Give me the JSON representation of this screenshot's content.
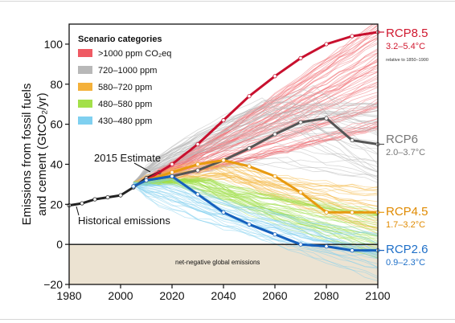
{
  "chart_data": {
    "type": "line",
    "xlabel": "",
    "ylabel_line1": "Emissions from fossil fuels",
    "ylabel_line2": "and cement (GtCO₂/yr)",
    "xlim": [
      1980,
      2100
    ],
    "ylim": [
      -20,
      110
    ],
    "xticks": [
      "1980",
      "2000",
      "2020",
      "2040",
      "2060",
      "2080",
      "2100"
    ],
    "yticks": [
      "−20",
      "0",
      "20",
      "40",
      "60",
      "80",
      "100"
    ],
    "legend": {
      "title": "Scenario categories",
      "placement": "top-left",
      "entries": [
        {
          "label": ">1000 ppm CO₂eq",
          "color": "#ef5a63"
        },
        {
          "label": "720–1000 ppm",
          "color": "#b8b8b8"
        },
        {
          "label": "580–720 ppm",
          "color": "#f4b13b"
        },
        {
          "label": "480–580 ppm",
          "color": "#a3e04a"
        },
        {
          "label": "430–480 ppm",
          "color": "#7fd0f0"
        }
      ]
    },
    "annotations": {
      "estimate_2015": "2015 Estimate",
      "historical": "Historical emissions",
      "net_negative": "net-negative global emissions",
      "relative_note": "relative to 1850–1900"
    },
    "series": [
      {
        "name": "Historical emissions",
        "color": "#222222",
        "x": [
          1980,
          1985,
          1990,
          1995,
          2000,
          2005,
          2010,
          2015
        ],
        "y": [
          19.5,
          20.5,
          22.5,
          23.5,
          24.5,
          28.5,
          33,
          36
        ]
      },
      {
        "name": "RCP8.5",
        "range": "3.2–5.4°C",
        "color": "#c8102e",
        "x": [
          2005,
          2010,
          2020,
          2030,
          2040,
          2050,
          2060,
          2070,
          2080,
          2090,
          2100
        ],
        "y": [
          29,
          32,
          40,
          50,
          62,
          74,
          84,
          93,
          100,
          104,
          106
        ]
      },
      {
        "name": "RCP6",
        "range": "2.0–3.7°C",
        "color": "#555555",
        "x": [
          2005,
          2010,
          2020,
          2030,
          2040,
          2050,
          2060,
          2070,
          2080,
          2090,
          2100
        ],
        "y": [
          29,
          32,
          34,
          37,
          42,
          48,
          55,
          61,
          63,
          52,
          50
        ]
      },
      {
        "name": "RCP4.5",
        "range": "1.7–3.2°C",
        "color": "#e89a10",
        "x": [
          2005,
          2010,
          2020,
          2030,
          2040,
          2050,
          2060,
          2070,
          2080,
          2090,
          2100
        ],
        "y": [
          29,
          32,
          36,
          40,
          42,
          39,
          34,
          26,
          16,
          16,
          16
        ]
      },
      {
        "name": "RCP2.6",
        "range": "0.9–2.3°C",
        "color": "#1560bd",
        "x": [
          2005,
          2010,
          2020,
          2030,
          2040,
          2050,
          2060,
          2070,
          2080,
          2090,
          2100
        ],
        "y": [
          29,
          32,
          34,
          25,
          16,
          10,
          5,
          0,
          -1,
          -3,
          -3
        ]
      }
    ],
    "grid": false
  }
}
